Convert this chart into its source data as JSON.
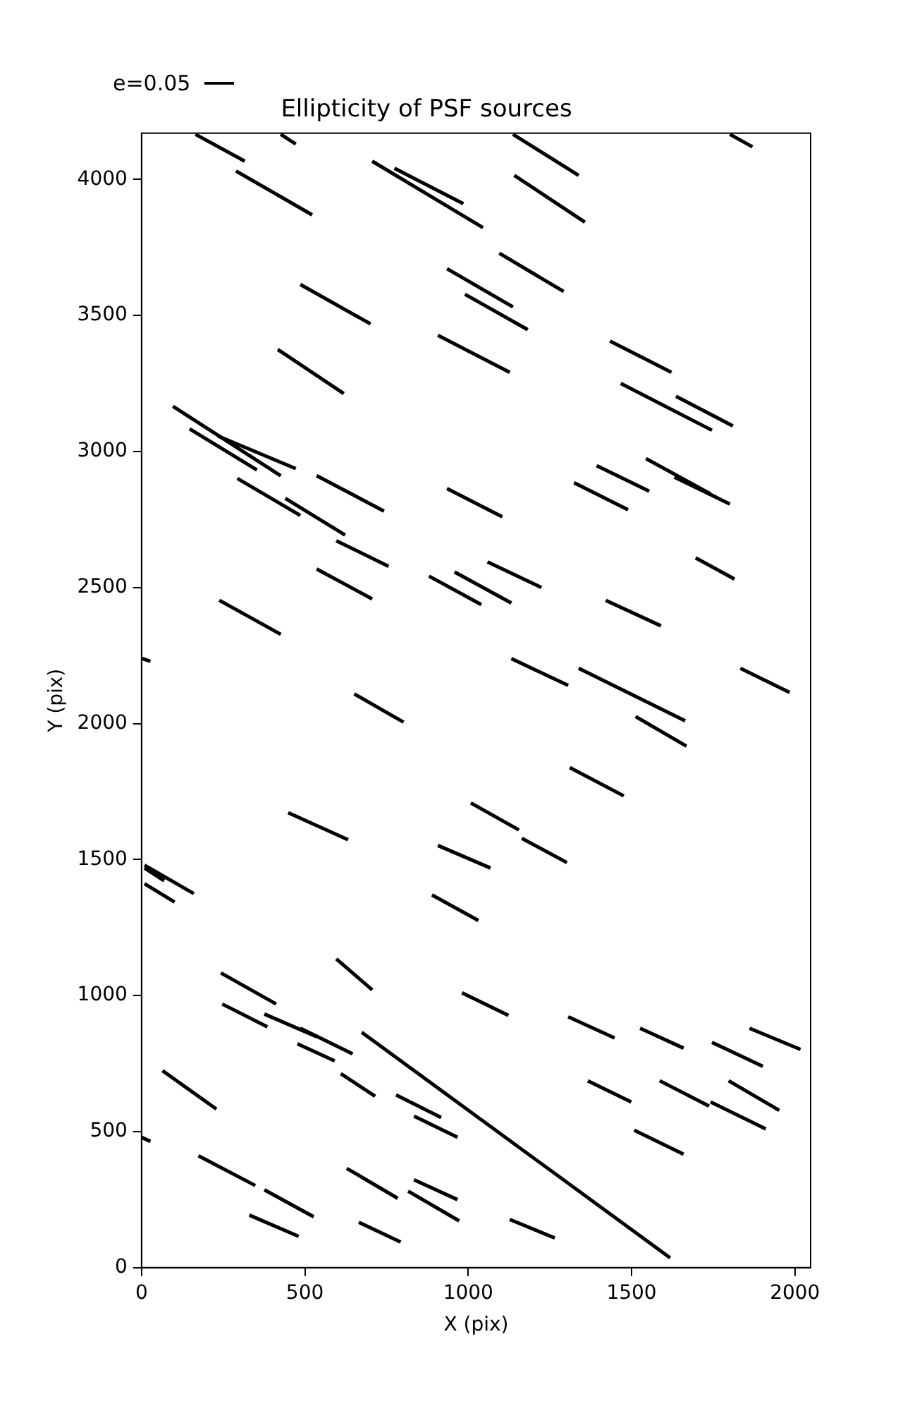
{
  "chart_data": {
    "type": "line",
    "title": "Ellipticity of PSF sources",
    "xlabel": "X (pix)",
    "ylabel": "Y (pix)",
    "annotations": [
      "e=0.05"
    ],
    "xlim": [
      0,
      2048
    ],
    "ylim": [
      0,
      4170
    ],
    "xticks": [
      0,
      500,
      1000,
      1500,
      2000
    ],
    "yticks": [
      0,
      500,
      1000,
      1500,
      2000,
      2500,
      3000,
      3500,
      4000
    ],
    "grid": false,
    "marker": "none",
    "line_style": "solid",
    "series": [
      {
        "color": "#000000",
        "x": [
          165,
          316
        ],
        "values": [
          4166,
          4067
        ]
      },
      {
        "color": "#000000",
        "x": [
          426,
          472
        ],
        "values": [
          4166,
          4130
        ]
      },
      {
        "color": "#000000",
        "x": [
          289,
          522
        ],
        "values": [
          4031,
          3870
        ]
      },
      {
        "color": "#000000",
        "x": [
          706,
          1045
        ],
        "values": [
          4067,
          3823
        ]
      },
      {
        "color": "#000000",
        "x": [
          774,
          985
        ],
        "values": [
          4041,
          3911
        ]
      },
      {
        "color": "#000000",
        "x": [
          1137,
          1338
        ],
        "values": [
          4166,
          4015
        ]
      },
      {
        "color": "#000000",
        "x": [
          1141,
          1357
        ],
        "values": [
          4015,
          3843
        ]
      },
      {
        "color": "#000000",
        "x": [
          1801,
          1870
        ],
        "values": [
          4166,
          4120
        ]
      },
      {
        "color": "#000000",
        "x": [
          486,
          701
        ],
        "values": [
          3614,
          3469
        ]
      },
      {
        "color": "#000000",
        "x": [
          935,
          1137
        ],
        "values": [
          3672,
          3531
        ]
      },
      {
        "color": "#000000",
        "x": [
          1095,
          1292
        ],
        "values": [
          3729,
          3588
        ]
      },
      {
        "color": "#000000",
        "x": [
          990,
          1182
        ],
        "values": [
          3578,
          3448
        ]
      },
      {
        "color": "#000000",
        "x": [
          907,
          1127
        ],
        "values": [
          3427,
          3291
        ]
      },
      {
        "color": "#000000",
        "x": [
          417,
          619
        ],
        "values": [
          3375,
          3213
        ]
      },
      {
        "color": "#000000",
        "x": [
          1434,
          1622
        ],
        "values": [
          3406,
          3291
        ]
      },
      {
        "color": "#000000",
        "x": [
          1467,
          1746
        ],
        "values": [
          3250,
          3078
        ]
      },
      {
        "color": "#000000",
        "x": [
          1636,
          1810
        ],
        "values": [
          3203,
          3094
        ]
      },
      {
        "color": "#000000",
        "x": [
          96,
          426
        ],
        "values": [
          3166,
          2911
        ]
      },
      {
        "color": "#000000",
        "x": [
          147,
          353
        ],
        "values": [
          3083,
          2932
        ]
      },
      {
        "color": "#000000",
        "x": [
          234,
          472
        ],
        "values": [
          3057,
          2937
        ]
      },
      {
        "color": "#000000",
        "x": [
          293,
          486
        ],
        "values": [
          2901,
          2765
        ]
      },
      {
        "color": "#000000",
        "x": [
          440,
          623
        ],
        "values": [
          2828,
          2693
        ]
      },
      {
        "color": "#000000",
        "x": [
          536,
          742
        ],
        "values": [
          2911,
          2781
        ]
      },
      {
        "color": "#000000",
        "x": [
          596,
          756
        ],
        "values": [
          2672,
          2578
        ]
      },
      {
        "color": "#000000",
        "x": [
          536,
          706
        ],
        "values": [
          2568,
          2458
        ]
      },
      {
        "color": "#000000",
        "x": [
          238,
          426
        ],
        "values": [
          2453,
          2328
        ]
      },
      {
        "color": "#000000",
        "x": [
          935,
          1104
        ],
        "values": [
          2864,
          2760
        ]
      },
      {
        "color": "#000000",
        "x": [
          880,
          1040
        ],
        "values": [
          2542,
          2437
        ]
      },
      {
        "color": "#000000",
        "x": [
          958,
          1132
        ],
        "values": [
          2557,
          2443
        ]
      },
      {
        "color": "#000000",
        "x": [
          1059,
          1224
        ],
        "values": [
          2594,
          2500
        ]
      },
      {
        "color": "#000000",
        "x": [
          1132,
          1306
        ],
        "values": [
          2239,
          2140
        ]
      },
      {
        "color": "#000000",
        "x": [
          1338,
          1664
        ],
        "values": [
          2203,
          2010
        ]
      },
      {
        "color": "#000000",
        "x": [
          1324,
          1489
        ],
        "values": [
          2885,
          2786
        ]
      },
      {
        "color": "#000000",
        "x": [
          1393,
          1554
        ],
        "values": [
          2948,
          2854
        ]
      },
      {
        "color": "#000000",
        "x": [
          1544,
          1742
        ],
        "values": [
          2974,
          2844
        ]
      },
      {
        "color": "#000000",
        "x": [
          1631,
          1801
        ],
        "values": [
          2906,
          2807
        ]
      },
      {
        "color": "#000000",
        "x": [
          1696,
          1815
        ],
        "values": [
          2609,
          2531
        ]
      },
      {
        "color": "#000000",
        "x": [
          1421,
          1590
        ],
        "values": [
          2453,
          2359
        ]
      },
      {
        "color": "#000000",
        "x": [
          1833,
          1984
        ],
        "values": [
          2203,
          2114
        ]
      },
      {
        "color": "#000000",
        "x": [
          0,
          27
        ],
        "values": [
          2240,
          2229
        ]
      },
      {
        "color": "#000000",
        "x": [
          651,
          802
        ],
        "values": [
          2109,
          2005
        ]
      },
      {
        "color": "#000000",
        "x": [
          1512,
          1668
        ],
        "values": [
          2026,
          1917
        ]
      },
      {
        "color": "#000000",
        "x": [
          1311,
          1476
        ],
        "values": [
          1838,
          1734
        ]
      },
      {
        "color": "#000000",
        "x": [
          1008,
          1155
        ],
        "values": [
          1708,
          1609
        ]
      },
      {
        "color": "#000000",
        "x": [
          449,
          632
        ],
        "values": [
          1672,
          1573
        ]
      },
      {
        "color": "#000000",
        "x": [
          907,
          1068
        ],
        "values": [
          1552,
          1469
        ]
      },
      {
        "color": "#000000",
        "x": [
          1164,
          1302
        ],
        "values": [
          1578,
          1489
        ]
      },
      {
        "color": "#000000",
        "x": [
          9,
          160
        ],
        "values": [
          1479,
          1375
        ]
      },
      {
        "color": "#000000",
        "x": [
          9,
          69
        ],
        "values": [
          1469,
          1422
        ]
      },
      {
        "color": "#000000",
        "x": [
          9,
          101
        ],
        "values": [
          1411,
          1344
        ]
      },
      {
        "color": "#000000",
        "x": [
          889,
          1031
        ],
        "values": [
          1370,
          1276
        ]
      },
      {
        "color": "#000000",
        "x": [
          596,
          706
        ],
        "values": [
          1135,
          1021
        ]
      },
      {
        "color": "#000000",
        "x": [
          243,
          412
        ],
        "values": [
          1083,
          969
        ]
      },
      {
        "color": "#000000",
        "x": [
          981,
          1123
        ],
        "values": [
          1010,
          927
        ]
      },
      {
        "color": "#000000",
        "x": [
          247,
          385
        ],
        "values": [
          969,
          885
        ]
      },
      {
        "color": "#000000",
        "x": [
          376,
          536
        ],
        "values": [
          932,
          849
        ]
      },
      {
        "color": "#000000",
        "x": [
          486,
          646
        ],
        "values": [
          880,
          786
        ]
      },
      {
        "color": "#000000",
        "x": [
          477,
          591
        ],
        "values": [
          823,
          760
        ]
      },
      {
        "color": "#000000",
        "x": [
          674,
          1618
        ],
        "values": [
          865,
          36
        ]
      },
      {
        "color": "#000000",
        "x": [
          1306,
          1448
        ],
        "values": [
          922,
          844
        ]
      },
      {
        "color": "#000000",
        "x": [
          1526,
          1659
        ],
        "values": [
          880,
          807
        ]
      },
      {
        "color": "#000000",
        "x": [
          1746,
          1902
        ],
        "values": [
          828,
          740
        ]
      },
      {
        "color": "#000000",
        "x": [
          1861,
          2017
        ],
        "values": [
          880,
          802
        ]
      },
      {
        "color": "#000000",
        "x": [
          64,
          229
        ],
        "values": [
          724,
          583
        ]
      },
      {
        "color": "#000000",
        "x": [
          610,
          715
        ],
        "values": [
          713,
          630
        ]
      },
      {
        "color": "#000000",
        "x": [
          779,
          917
        ],
        "values": [
          635,
          552
        ]
      },
      {
        "color": "#000000",
        "x": [
          834,
          967
        ],
        "values": [
          557,
          479
        ]
      },
      {
        "color": "#000000",
        "x": [
          1366,
          1499
        ],
        "values": [
          687,
          609
        ]
      },
      {
        "color": "#000000",
        "x": [
          1586,
          1737
        ],
        "values": [
          687,
          594
        ]
      },
      {
        "color": "#000000",
        "x": [
          1797,
          1952
        ],
        "values": [
          687,
          578
        ]
      },
      {
        "color": "#000000",
        "x": [
          1742,
          1911
        ],
        "values": [
          609,
          510
        ]
      },
      {
        "color": "#000000",
        "x": [
          1508,
          1659
        ],
        "values": [
          505,
          417
        ]
      },
      {
        "color": "#000000",
        "x": [
          0,
          27
        ],
        "values": [
          479,
          464
        ]
      },
      {
        "color": "#000000",
        "x": [
          174,
          348
        ],
        "values": [
          411,
          302
        ]
      },
      {
        "color": "#000000",
        "x": [
          628,
          784
        ],
        "values": [
          365,
          255
        ]
      },
      {
        "color": "#000000",
        "x": [
          834,
          967
        ],
        "values": [
          323,
          250
        ]
      },
      {
        "color": "#000000",
        "x": [
          376,
          527
        ],
        "values": [
          286,
          187
        ]
      },
      {
        "color": "#000000",
        "x": [
          816,
          972
        ],
        "values": [
          281,
          172
        ]
      },
      {
        "color": "#000000",
        "x": [
          330,
          481
        ],
        "values": [
          193,
          115
        ]
      },
      {
        "color": "#000000",
        "x": [
          665,
          793
        ],
        "values": [
          167,
          94
        ]
      },
      {
        "color": "#000000",
        "x": [
          1127,
          1265
        ],
        "values": [
          177,
          109
        ]
      }
    ]
  }
}
